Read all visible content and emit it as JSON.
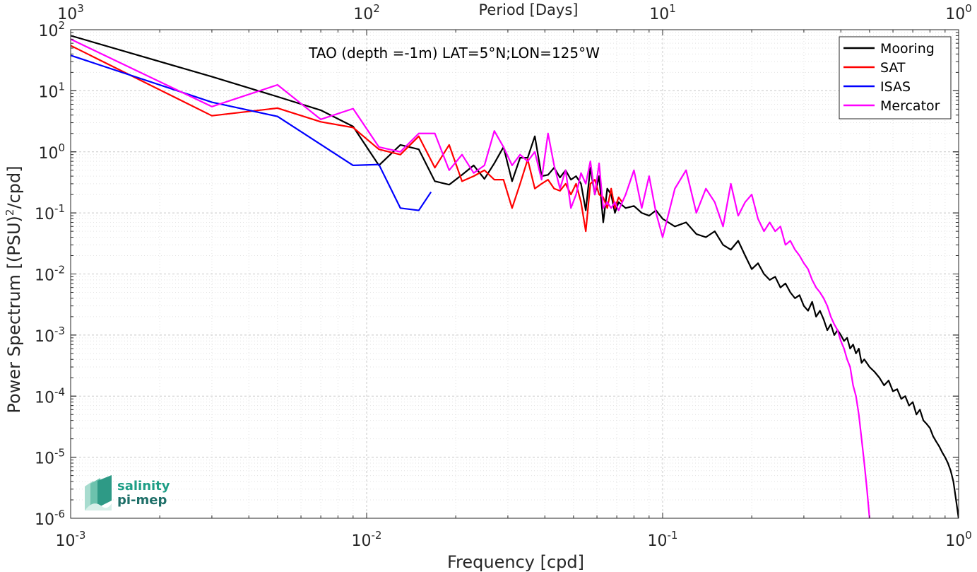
{
  "chart_data": {
    "type": "line",
    "title": "TAO (depth =-1m) LAT=5°N;LON=125°W",
    "xlabel": "Frequency [cpd]",
    "ylabel": "Power Spectrum [(PSU)²/cpd]",
    "ylabel_parts": {
      "prefix": "Power Spectrum [(PSU)",
      "sup": "2",
      "suffix": "/cpd]"
    },
    "top_xlabel": "Period [Days]",
    "x_scale": "log",
    "y_scale": "log",
    "xlim": [
      0.001,
      1
    ],
    "ylim": [
      1e-06,
      100
    ],
    "grid": true,
    "legend_position": "top-right",
    "x_ticks": [
      {
        "value": 0.001,
        "base": "10",
        "exp": "-3"
      },
      {
        "value": 0.01,
        "base": "10",
        "exp": "-2"
      },
      {
        "value": 0.1,
        "base": "10",
        "exp": "-1"
      },
      {
        "value": 1,
        "base": "10",
        "exp": "0"
      }
    ],
    "top_ticks": [
      {
        "value": 0.001,
        "base": "10",
        "exp": "3"
      },
      {
        "value": 0.01,
        "base": "10",
        "exp": "2"
      },
      {
        "value": 0.1,
        "base": "10",
        "exp": "1"
      },
      {
        "value": 1,
        "base": "10",
        "exp": "0"
      }
    ],
    "y_ticks": [
      {
        "value": 100,
        "base": "10",
        "exp": "2"
      },
      {
        "value": 10,
        "base": "10",
        "exp": "1"
      },
      {
        "value": 1,
        "base": "10",
        "exp": "0"
      },
      {
        "value": 0.1,
        "base": "10",
        "exp": "-1"
      },
      {
        "value": 0.01,
        "base": "10",
        "exp": "-2"
      },
      {
        "value": 0.001,
        "base": "10",
        "exp": "-3"
      },
      {
        "value": 0.0001,
        "base": "10",
        "exp": "-4"
      },
      {
        "value": 1e-05,
        "base": "10",
        "exp": "-5"
      },
      {
        "value": 1e-06,
        "base": "10",
        "exp": "-6"
      }
    ],
    "series": [
      {
        "name": "Mooring",
        "color": "#000000",
        "x": [
          0.001,
          0.003,
          0.005,
          0.007,
          0.009,
          0.011,
          0.013,
          0.015,
          0.017,
          0.019,
          0.021,
          0.023,
          0.025,
          0.027,
          0.029,
          0.031,
          0.033,
          0.035,
          0.037,
          0.039,
          0.041,
          0.043,
          0.045,
          0.047,
          0.049,
          0.051,
          0.053,
          0.055,
          0.057,
          0.059,
          0.061,
          0.063,
          0.065,
          0.067,
          0.069,
          0.071,
          0.075,
          0.08,
          0.085,
          0.09,
          0.095,
          0.1,
          0.11,
          0.12,
          0.13,
          0.14,
          0.15,
          0.16,
          0.17,
          0.18,
          0.19,
          0.2,
          0.21,
          0.22,
          0.23,
          0.24,
          0.25,
          0.26,
          0.27,
          0.28,
          0.29,
          0.3,
          0.31,
          0.32,
          0.33,
          0.34,
          0.35,
          0.36,
          0.37,
          0.38,
          0.39,
          0.4,
          0.41,
          0.42,
          0.43,
          0.44,
          0.45,
          0.46,
          0.47,
          0.48,
          0.5,
          0.52,
          0.54,
          0.56,
          0.58,
          0.6,
          0.62,
          0.64,
          0.66,
          0.68,
          0.7,
          0.72,
          0.74,
          0.76,
          0.78,
          0.8,
          0.82,
          0.84,
          0.86,
          0.88,
          0.9,
          0.92,
          0.94,
          0.96,
          0.98,
          1.0
        ],
        "y": [
          80,
          17,
          8,
          4.8,
          2.6,
          0.6,
          1.3,
          1.1,
          0.33,
          0.29,
          0.42,
          0.6,
          0.36,
          0.65,
          1.2,
          0.33,
          0.8,
          0.8,
          1.8,
          0.4,
          0.42,
          0.55,
          0.38,
          0.5,
          0.35,
          0.4,
          0.3,
          0.11,
          0.55,
          0.2,
          0.4,
          0.07,
          0.25,
          0.2,
          0.1,
          0.15,
          0.12,
          0.13,
          0.1,
          0.09,
          0.11,
          0.08,
          0.06,
          0.07,
          0.045,
          0.04,
          0.05,
          0.03,
          0.025,
          0.035,
          0.02,
          0.012,
          0.015,
          0.01,
          0.008,
          0.009,
          0.006,
          0.007,
          0.005,
          0.004,
          0.0045,
          0.003,
          0.0025,
          0.0035,
          0.002,
          0.0025,
          0.0018,
          0.0012,
          0.0015,
          0.001,
          0.0012,
          0.001,
          0.0008,
          0.0009,
          0.0006,
          0.0007,
          0.0005,
          0.0006,
          0.00035,
          0.0004,
          0.0003,
          0.00025,
          0.0002,
          0.00015,
          0.00018,
          0.00012,
          0.00013,
          9e-05,
          0.0001,
          7e-05,
          8e-05,
          5e-05,
          6e-05,
          4e-05,
          3.5e-05,
          3e-05,
          2.2e-05,
          1.8e-05,
          1.5e-05,
          1.2e-05,
          1e-05,
          8e-06,
          6e-06,
          4e-06,
          2e-06,
          1e-06
        ]
      },
      {
        "name": "SAT",
        "color": "#ff0000",
        "x": [
          0.001,
          0.003,
          0.005,
          0.007,
          0.009,
          0.011,
          0.013,
          0.015,
          0.017,
          0.019,
          0.021,
          0.023,
          0.025,
          0.027,
          0.029,
          0.031,
          0.033,
          0.035,
          0.037,
          0.039,
          0.041,
          0.043,
          0.045,
          0.047,
          0.049,
          0.051,
          0.053,
          0.055,
          0.057,
          0.059,
          0.061,
          0.063,
          0.065,
          0.067,
          0.069,
          0.071,
          0.073
        ],
        "y": [
          55,
          3.9,
          5.2,
          3.1,
          2.5,
          1.1,
          0.9,
          1.8,
          0.55,
          1.3,
          0.33,
          0.4,
          0.5,
          0.35,
          0.35,
          0.12,
          0.3,
          0.75,
          0.25,
          0.3,
          0.35,
          0.25,
          0.23,
          0.3,
          0.2,
          0.3,
          0.15,
          0.05,
          0.3,
          0.35,
          0.2,
          0.18,
          0.12,
          0.25,
          0.12,
          0.18,
          0.15
        ]
      },
      {
        "name": "ISAS",
        "color": "#0000ff",
        "x": [
          0.001,
          0.003,
          0.005,
          0.009,
          0.011,
          0.013,
          0.015,
          0.0165
        ],
        "y": [
          38,
          6.5,
          3.8,
          0.6,
          0.62,
          0.12,
          0.11,
          0.22
        ]
      },
      {
        "name": "Mercator",
        "color": "#ff00ff",
        "x": [
          0.001,
          0.003,
          0.005,
          0.007,
          0.009,
          0.011,
          0.013,
          0.015,
          0.017,
          0.019,
          0.021,
          0.023,
          0.025,
          0.027,
          0.029,
          0.031,
          0.033,
          0.035,
          0.037,
          0.039,
          0.041,
          0.043,
          0.045,
          0.047,
          0.049,
          0.051,
          0.053,
          0.055,
          0.057,
          0.059,
          0.061,
          0.063,
          0.065,
          0.067,
          0.069,
          0.071,
          0.075,
          0.08,
          0.085,
          0.09,
          0.095,
          0.1,
          0.11,
          0.12,
          0.13,
          0.14,
          0.15,
          0.16,
          0.17,
          0.18,
          0.19,
          0.2,
          0.21,
          0.22,
          0.23,
          0.24,
          0.25,
          0.26,
          0.27,
          0.28,
          0.29,
          0.3,
          0.31,
          0.32,
          0.33,
          0.34,
          0.35,
          0.36,
          0.37,
          0.38,
          0.39,
          0.4,
          0.41,
          0.42,
          0.43,
          0.44,
          0.45,
          0.46,
          0.47,
          0.48,
          0.49,
          0.5
        ],
        "y": [
          70,
          5.5,
          12.5,
          3.4,
          5.1,
          1.2,
          1.0,
          2.0,
          2.0,
          0.5,
          0.9,
          0.45,
          0.6,
          2.2,
          1.2,
          0.6,
          0.9,
          0.7,
          1.0,
          0.35,
          2.0,
          0.6,
          0.25,
          0.5,
          0.12,
          0.2,
          0.45,
          0.3,
          0.7,
          0.2,
          0.65,
          0.12,
          0.15,
          0.12,
          0.15,
          0.11,
          0.2,
          0.5,
          0.12,
          0.4,
          0.1,
          0.04,
          0.25,
          0.5,
          0.1,
          0.25,
          0.15,
          0.06,
          0.3,
          0.09,
          0.15,
          0.2,
          0.08,
          0.05,
          0.07,
          0.05,
          0.06,
          0.03,
          0.035,
          0.025,
          0.02,
          0.015,
          0.012,
          0.008,
          0.006,
          0.005,
          0.004,
          0.003,
          0.002,
          0.0015,
          0.0012,
          0.0008,
          0.0006,
          0.0004,
          0.0003,
          0.00015,
          0.0001,
          5e-05,
          2e-05,
          8e-06,
          3e-06,
          1e-06
        ]
      }
    ]
  },
  "logo": {
    "line1": "salinity",
    "line2": "pi-mep"
  }
}
